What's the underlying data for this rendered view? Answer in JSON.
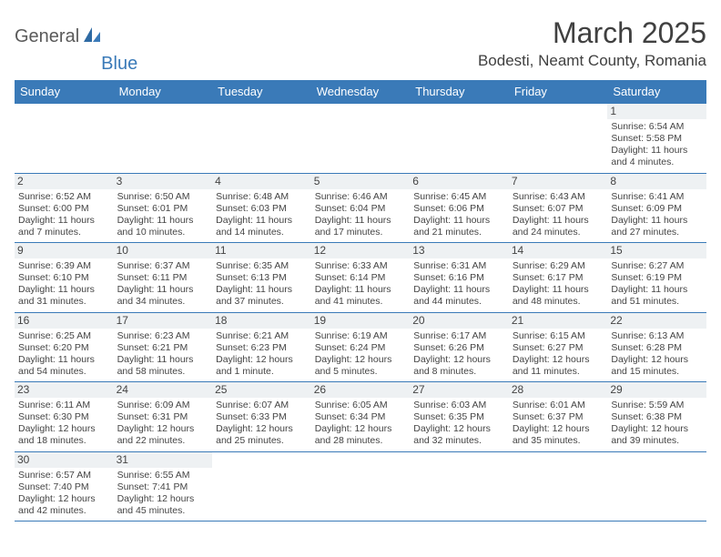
{
  "logo": {
    "part1": "General",
    "part2": "Blue"
  },
  "title": "March 2025",
  "location": "Bodesti, Neamt County, Romania",
  "colors": {
    "header_bg": "#3a7ab8",
    "header_fg": "#ffffff",
    "row_border": "#3a7ab8",
    "daynum_bg": "#eef1f3",
    "text": "#444444"
  },
  "day_headers": [
    "Sunday",
    "Monday",
    "Tuesday",
    "Wednesday",
    "Thursday",
    "Friday",
    "Saturday"
  ],
  "weeks": [
    [
      null,
      null,
      null,
      null,
      null,
      null,
      {
        "n": "1",
        "sr": "Sunrise: 6:54 AM",
        "ss": "Sunset: 5:58 PM",
        "d1": "Daylight: 11 hours",
        "d2": "and 4 minutes."
      }
    ],
    [
      {
        "n": "2",
        "sr": "Sunrise: 6:52 AM",
        "ss": "Sunset: 6:00 PM",
        "d1": "Daylight: 11 hours",
        "d2": "and 7 minutes."
      },
      {
        "n": "3",
        "sr": "Sunrise: 6:50 AM",
        "ss": "Sunset: 6:01 PM",
        "d1": "Daylight: 11 hours",
        "d2": "and 10 minutes."
      },
      {
        "n": "4",
        "sr": "Sunrise: 6:48 AM",
        "ss": "Sunset: 6:03 PM",
        "d1": "Daylight: 11 hours",
        "d2": "and 14 minutes."
      },
      {
        "n": "5",
        "sr": "Sunrise: 6:46 AM",
        "ss": "Sunset: 6:04 PM",
        "d1": "Daylight: 11 hours",
        "d2": "and 17 minutes."
      },
      {
        "n": "6",
        "sr": "Sunrise: 6:45 AM",
        "ss": "Sunset: 6:06 PM",
        "d1": "Daylight: 11 hours",
        "d2": "and 21 minutes."
      },
      {
        "n": "7",
        "sr": "Sunrise: 6:43 AM",
        "ss": "Sunset: 6:07 PM",
        "d1": "Daylight: 11 hours",
        "d2": "and 24 minutes."
      },
      {
        "n": "8",
        "sr": "Sunrise: 6:41 AM",
        "ss": "Sunset: 6:09 PM",
        "d1": "Daylight: 11 hours",
        "d2": "and 27 minutes."
      }
    ],
    [
      {
        "n": "9",
        "sr": "Sunrise: 6:39 AM",
        "ss": "Sunset: 6:10 PM",
        "d1": "Daylight: 11 hours",
        "d2": "and 31 minutes."
      },
      {
        "n": "10",
        "sr": "Sunrise: 6:37 AM",
        "ss": "Sunset: 6:11 PM",
        "d1": "Daylight: 11 hours",
        "d2": "and 34 minutes."
      },
      {
        "n": "11",
        "sr": "Sunrise: 6:35 AM",
        "ss": "Sunset: 6:13 PM",
        "d1": "Daylight: 11 hours",
        "d2": "and 37 minutes."
      },
      {
        "n": "12",
        "sr": "Sunrise: 6:33 AM",
        "ss": "Sunset: 6:14 PM",
        "d1": "Daylight: 11 hours",
        "d2": "and 41 minutes."
      },
      {
        "n": "13",
        "sr": "Sunrise: 6:31 AM",
        "ss": "Sunset: 6:16 PM",
        "d1": "Daylight: 11 hours",
        "d2": "and 44 minutes."
      },
      {
        "n": "14",
        "sr": "Sunrise: 6:29 AM",
        "ss": "Sunset: 6:17 PM",
        "d1": "Daylight: 11 hours",
        "d2": "and 48 minutes."
      },
      {
        "n": "15",
        "sr": "Sunrise: 6:27 AM",
        "ss": "Sunset: 6:19 PM",
        "d1": "Daylight: 11 hours",
        "d2": "and 51 minutes."
      }
    ],
    [
      {
        "n": "16",
        "sr": "Sunrise: 6:25 AM",
        "ss": "Sunset: 6:20 PM",
        "d1": "Daylight: 11 hours",
        "d2": "and 54 minutes."
      },
      {
        "n": "17",
        "sr": "Sunrise: 6:23 AM",
        "ss": "Sunset: 6:21 PM",
        "d1": "Daylight: 11 hours",
        "d2": "and 58 minutes."
      },
      {
        "n": "18",
        "sr": "Sunrise: 6:21 AM",
        "ss": "Sunset: 6:23 PM",
        "d1": "Daylight: 12 hours",
        "d2": "and 1 minute."
      },
      {
        "n": "19",
        "sr": "Sunrise: 6:19 AM",
        "ss": "Sunset: 6:24 PM",
        "d1": "Daylight: 12 hours",
        "d2": "and 5 minutes."
      },
      {
        "n": "20",
        "sr": "Sunrise: 6:17 AM",
        "ss": "Sunset: 6:26 PM",
        "d1": "Daylight: 12 hours",
        "d2": "and 8 minutes."
      },
      {
        "n": "21",
        "sr": "Sunrise: 6:15 AM",
        "ss": "Sunset: 6:27 PM",
        "d1": "Daylight: 12 hours",
        "d2": "and 11 minutes."
      },
      {
        "n": "22",
        "sr": "Sunrise: 6:13 AM",
        "ss": "Sunset: 6:28 PM",
        "d1": "Daylight: 12 hours",
        "d2": "and 15 minutes."
      }
    ],
    [
      {
        "n": "23",
        "sr": "Sunrise: 6:11 AM",
        "ss": "Sunset: 6:30 PM",
        "d1": "Daylight: 12 hours",
        "d2": "and 18 minutes."
      },
      {
        "n": "24",
        "sr": "Sunrise: 6:09 AM",
        "ss": "Sunset: 6:31 PM",
        "d1": "Daylight: 12 hours",
        "d2": "and 22 minutes."
      },
      {
        "n": "25",
        "sr": "Sunrise: 6:07 AM",
        "ss": "Sunset: 6:33 PM",
        "d1": "Daylight: 12 hours",
        "d2": "and 25 minutes."
      },
      {
        "n": "26",
        "sr": "Sunrise: 6:05 AM",
        "ss": "Sunset: 6:34 PM",
        "d1": "Daylight: 12 hours",
        "d2": "and 28 minutes."
      },
      {
        "n": "27",
        "sr": "Sunrise: 6:03 AM",
        "ss": "Sunset: 6:35 PM",
        "d1": "Daylight: 12 hours",
        "d2": "and 32 minutes."
      },
      {
        "n": "28",
        "sr": "Sunrise: 6:01 AM",
        "ss": "Sunset: 6:37 PM",
        "d1": "Daylight: 12 hours",
        "d2": "and 35 minutes."
      },
      {
        "n": "29",
        "sr": "Sunrise: 5:59 AM",
        "ss": "Sunset: 6:38 PM",
        "d1": "Daylight: 12 hours",
        "d2": "and 39 minutes."
      }
    ],
    [
      {
        "n": "30",
        "sr": "Sunrise: 6:57 AM",
        "ss": "Sunset: 7:40 PM",
        "d1": "Daylight: 12 hours",
        "d2": "and 42 minutes."
      },
      {
        "n": "31",
        "sr": "Sunrise: 6:55 AM",
        "ss": "Sunset: 7:41 PM",
        "d1": "Daylight: 12 hours",
        "d2": "and 45 minutes."
      },
      null,
      null,
      null,
      null,
      null
    ]
  ]
}
